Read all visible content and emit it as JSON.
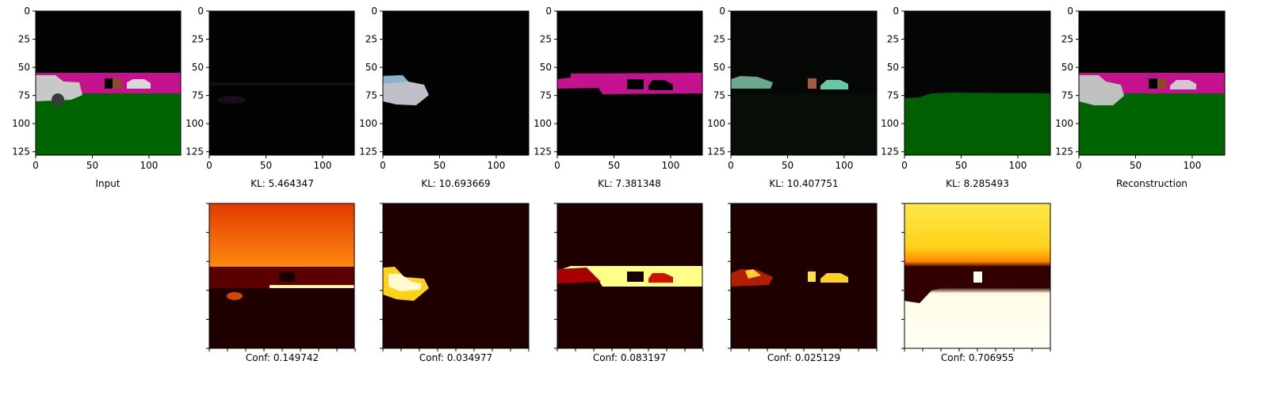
{
  "ticks": {
    "x_labels": [
      "0",
      "50",
      "100"
    ],
    "y_labels": [
      "0",
      "25",
      "50",
      "75",
      "100",
      "125"
    ]
  },
  "top_row": [
    {
      "label": "Input"
    },
    {
      "label": "KL: 5.464347"
    },
    {
      "label": "KL: 10.693669"
    },
    {
      "label": "KL: 7.381348"
    },
    {
      "label": "KL: 10.407751"
    },
    {
      "label": "KL: 8.285493"
    },
    {
      "label": "Reconstruction"
    }
  ],
  "bottom_row": [
    {
      "label": "Conf: 0.149742"
    },
    {
      "label": "Conf: 0.034977"
    },
    {
      "label": "Conf: 0.083197"
    },
    {
      "label": "Conf: 0.025129"
    },
    {
      "label": "Conf: 0.706955"
    }
  ],
  "colors": {
    "background": "#ffffff",
    "sky": "#030303",
    "magenta_road": "#c4118e",
    "green_ground": "#006400",
    "car_grey": "#c8c8c8",
    "heat_dark": "#1e0000",
    "heat_red": "#a80000",
    "heat_orange": "#ff6a00",
    "heat_yellow": "#ffff7a",
    "heat_white": "#fffff0"
  }
}
